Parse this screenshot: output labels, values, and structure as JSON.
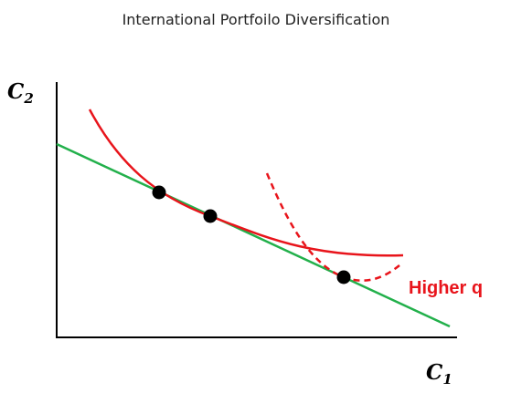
{
  "title": "International Portfoilo Diversification",
  "y_axis_label": {
    "symbol": "C",
    "subscript": "2"
  },
  "x_axis_label": {
    "symbol": "C",
    "subscript": "1"
  },
  "annotation": "Higher q"
}
